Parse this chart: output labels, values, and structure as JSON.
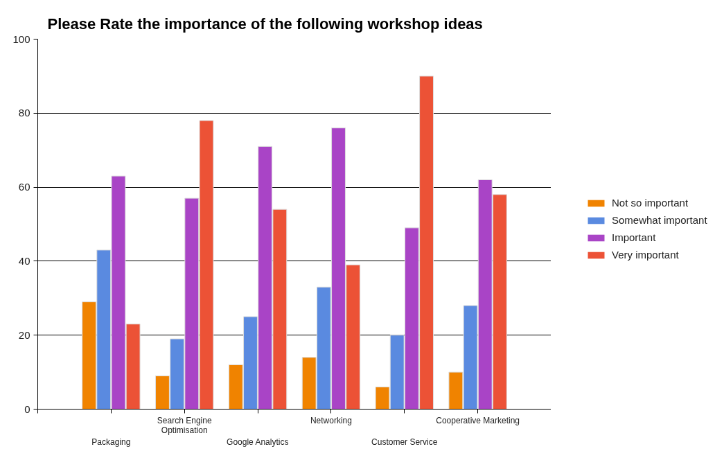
{
  "chart_data": {
    "type": "bar",
    "title": "Please Rate the importance of the following workshop ideas",
    "categories": [
      "Packaging",
      "Search Engine Optimisation",
      "Google Analytics",
      "Networking",
      "Customer Service",
      "Cooperative Marketing"
    ],
    "series": [
      {
        "name": "Not so important",
        "color": "#f08300",
        "values": [
          29,
          9,
          12,
          14,
          6,
          10
        ]
      },
      {
        "name": "Somewhat important",
        "color": "#5a8ae0",
        "values": [
          43,
          19,
          25,
          33,
          20,
          28
        ]
      },
      {
        "name": "Important",
        "color": "#a944c6",
        "values": [
          63,
          57,
          71,
          76,
          49,
          62
        ]
      },
      {
        "name": "Very important",
        "color": "#ec5236",
        "values": [
          23,
          78,
          54,
          39,
          90,
          58
        ]
      }
    ],
    "ylim": [
      0,
      100
    ],
    "yticks": [
      0,
      20,
      40,
      60,
      80,
      100
    ],
    "grid": "y",
    "legend": "right"
  }
}
